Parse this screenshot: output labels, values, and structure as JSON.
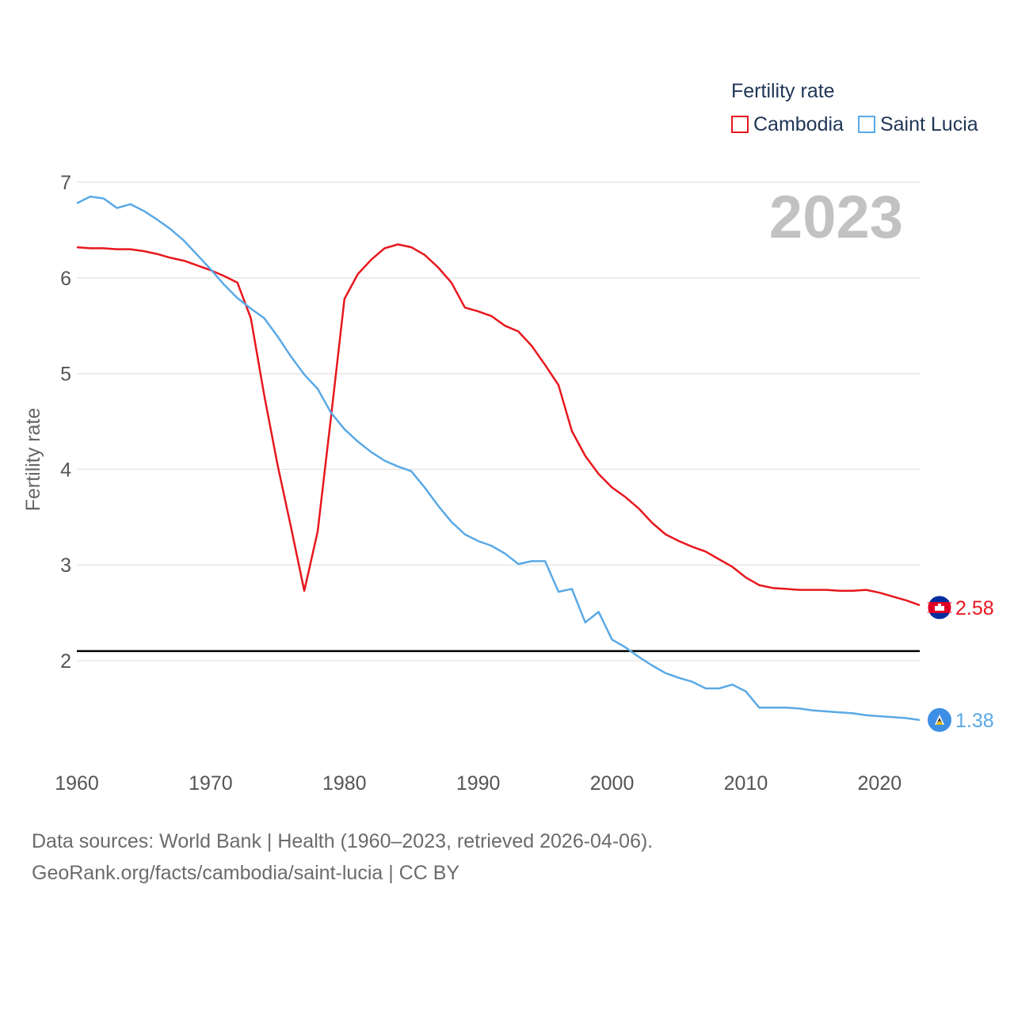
{
  "legend": {
    "title": "Fertility rate"
  },
  "footer": {
    "line1": "Data sources: World Bank | Health (1960–2023, retrieved 2026-04-06).",
    "line2": "GeoRank.org/facts/cambodia/saint-lucia | CC BY"
  },
  "chart_data": {
    "type": "line",
    "title": "",
    "year_label": "2023",
    "xlabel": "",
    "ylabel": "Fertility rate",
    "xlim": [
      1960,
      2023
    ],
    "ylim": [
      1.0,
      7.0
    ],
    "x_ticks": [
      1960,
      1970,
      1980,
      1990,
      2000,
      2010,
      2020
    ],
    "y_ticks": [
      2,
      3,
      4,
      5,
      6,
      7
    ],
    "reference_line": 2.1,
    "legend_position": "top-right",
    "x": [
      1960,
      1961,
      1962,
      1963,
      1964,
      1965,
      1966,
      1967,
      1968,
      1969,
      1970,
      1971,
      1972,
      1973,
      1974,
      1975,
      1976,
      1977,
      1978,
      1979,
      1980,
      1981,
      1982,
      1983,
      1984,
      1985,
      1986,
      1987,
      1988,
      1989,
      1990,
      1991,
      1992,
      1993,
      1994,
      1995,
      1996,
      1997,
      1998,
      1999,
      2000,
      2001,
      2002,
      2003,
      2004,
      2005,
      2006,
      2007,
      2008,
      2009,
      2010,
      2011,
      2012,
      2013,
      2014,
      2015,
      2016,
      2017,
      2018,
      2019,
      2020,
      2021,
      2022,
      2023
    ],
    "series": [
      {
        "name": "Cambodia",
        "color": "#e8171e",
        "end_label": "2.58",
        "values": [
          6.32,
          6.31,
          6.31,
          6.3,
          6.3,
          6.28,
          6.25,
          6.21,
          6.18,
          6.13,
          6.08,
          6.02,
          5.95,
          5.58,
          4.78,
          4.05,
          3.4,
          2.73,
          3.35,
          4.55,
          5.78,
          6.04,
          6.19,
          6.31,
          6.35,
          6.32,
          6.24,
          6.11,
          5.95,
          5.69,
          5.65,
          5.6,
          5.5,
          5.44,
          5.29,
          5.09,
          4.88,
          4.4,
          4.14,
          3.95,
          3.81,
          3.71,
          3.59,
          3.44,
          3.32,
          3.25,
          3.19,
          3.14,
          3.06,
          2.98,
          2.87,
          2.79,
          2.76,
          2.75,
          2.74,
          2.74,
          2.74,
          2.73,
          2.73,
          2.74,
          2.71,
          2.67,
          2.63,
          2.58
        ]
      },
      {
        "name": "Saint Lucia",
        "color": "#5aa9e6",
        "end_label": "1.38",
        "values": [
          6.78,
          6.85,
          6.83,
          6.73,
          6.77,
          6.7,
          6.61,
          6.51,
          6.39,
          6.24,
          6.09,
          5.93,
          5.79,
          5.68,
          5.58,
          5.39,
          5.18,
          4.99,
          4.84,
          4.59,
          4.42,
          4.29,
          4.18,
          4.09,
          4.03,
          3.98,
          3.81,
          3.62,
          3.45,
          3.32,
          3.25,
          3.2,
          3.12,
          3.01,
          3.04,
          3.04,
          2.72,
          2.75,
          2.4,
          2.51,
          2.22,
          2.14,
          2.04,
          1.95,
          1.87,
          1.82,
          1.78,
          1.71,
          1.71,
          1.75,
          1.68,
          1.51,
          1.51,
          1.51,
          1.5,
          1.48,
          1.47,
          1.46,
          1.45,
          1.43,
          1.42,
          1.41,
          1.4,
          1.38
        ]
      }
    ]
  }
}
